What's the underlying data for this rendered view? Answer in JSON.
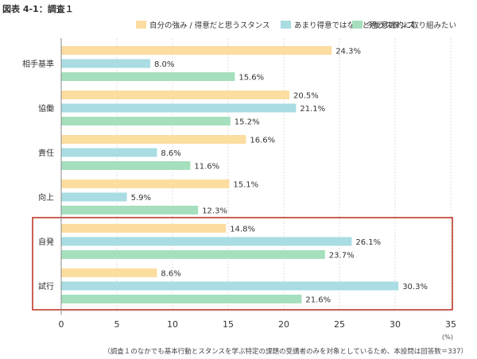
{
  "figure_title": "図表 4-1：調査１",
  "unit_label": "(%)",
  "footnote": "（調査１のなかでも基本行動とスタンスを学ぶ特定の課題の受講者のみを対象としているため、本設問は回答数＝337）",
  "colors": {
    "series": [
      "#fcdda0",
      "#a9dce3",
      "#a6dfbd"
    ],
    "highlight_box": "#c0392b",
    "axis": "#888888",
    "grid": "#cfcfcf"
  },
  "chart_data": {
    "type": "bar",
    "orientation": "horizontal",
    "title": "",
    "xlabel": "",
    "ylabel": "",
    "xlim": [
      0,
      35
    ],
    "x_ticks": [
      0,
      5,
      10,
      15,
      20,
      25,
      30,
      35
    ],
    "grid": true,
    "legend_position": "top",
    "highlighted_categories": [
      "自発",
      "試行"
    ],
    "categories": [
      "相手基準",
      "協働",
      "責任",
      "向上",
      "自発",
      "試行"
    ],
    "series": [
      {
        "name": "自分の強み / 得意だと思うスタンス",
        "values": [
          24.3,
          20.5,
          16.6,
          15.1,
          14.8,
          8.6
        ]
      },
      {
        "name": "あまり得意ではないと思うスタンス",
        "values": [
          8.0,
          21.1,
          8.6,
          5.9,
          26.1,
          30.3
        ]
      },
      {
        "name": "今後意識的に取り組みたい",
        "values": [
          15.6,
          15.2,
          11.6,
          12.3,
          23.7,
          21.6
        ]
      }
    ]
  }
}
